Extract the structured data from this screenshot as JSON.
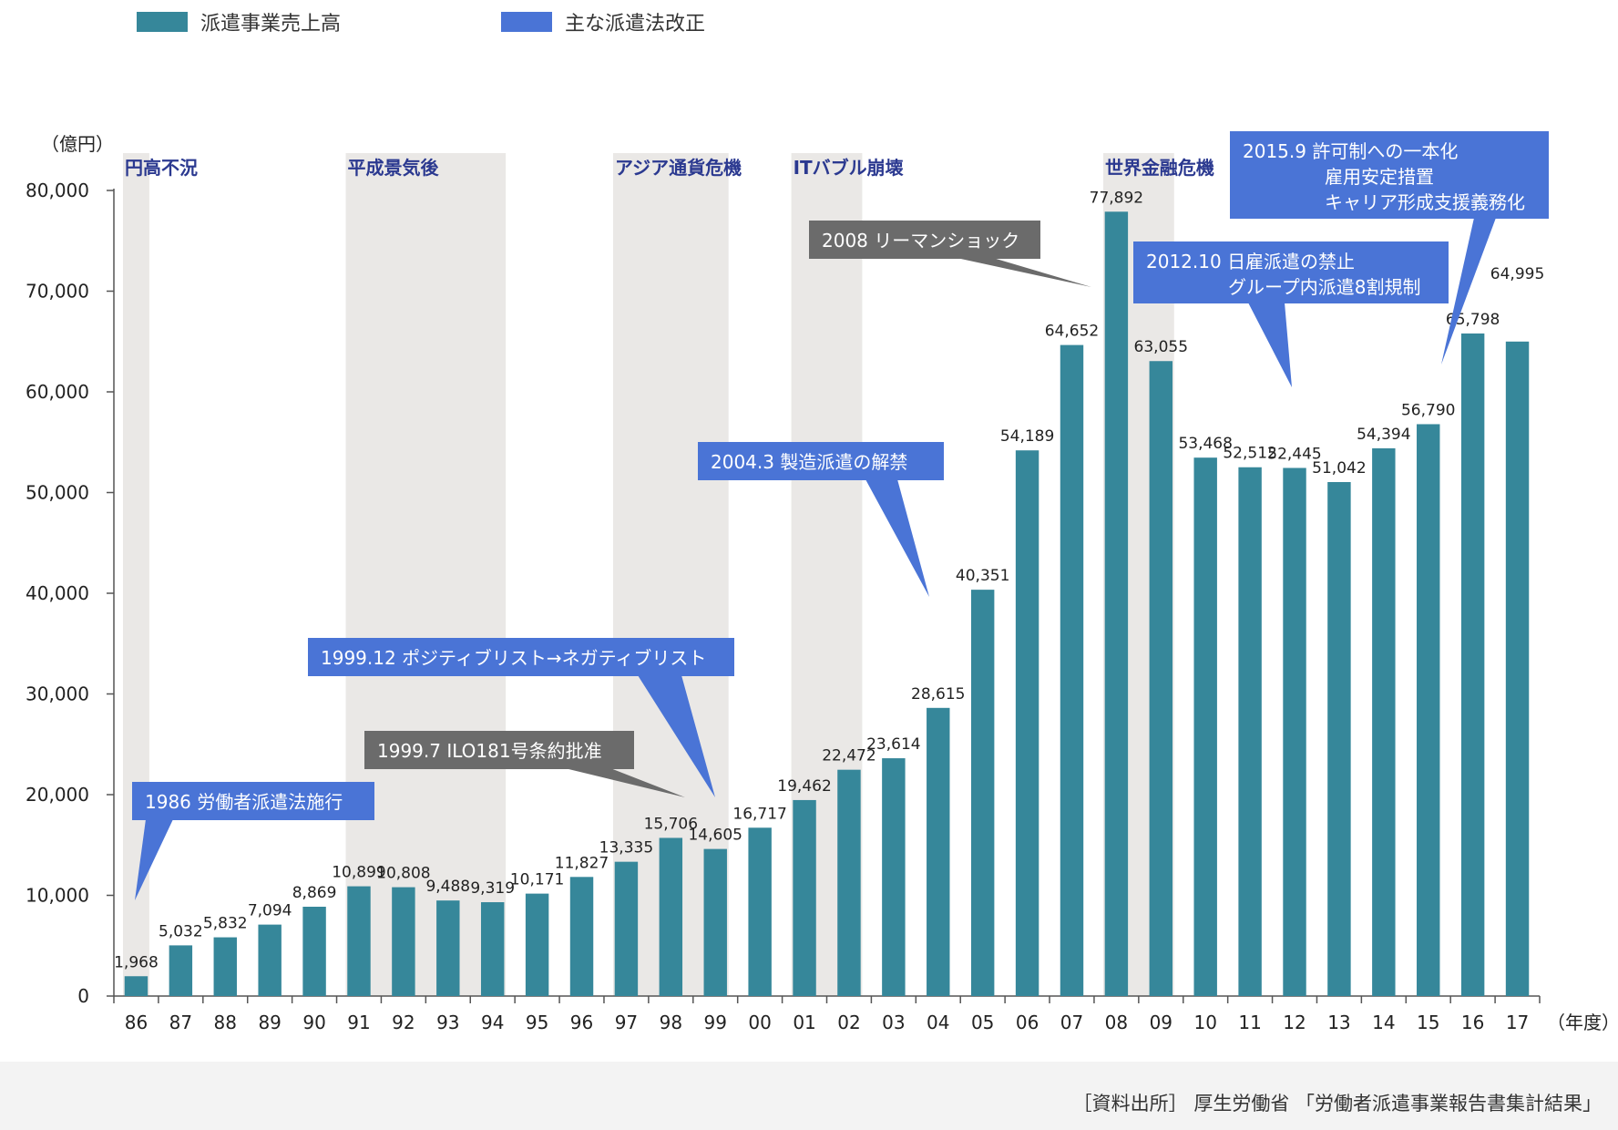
{
  "legend": {
    "sales_label": "派遣事業売上高",
    "revision_label": "主な派遣法改正"
  },
  "source_note": "［資料出所］ 厚生労働省 「労働者派遣事業報告書集計結果」",
  "colors": {
    "bar": "#36879A",
    "callout_blue": "#4A74D6",
    "callout_gray": "#6B6B6B",
    "recession_band": "#EAE8E6",
    "band_label": "#2B3990",
    "axis": "#555555"
  },
  "chart_data": {
    "type": "bar",
    "y_unit": "（億円）",
    "x_unit": "（年度）",
    "ylim": [
      0,
      80000
    ],
    "y_ticks": [
      0,
      10000,
      20000,
      30000,
      40000,
      50000,
      60000,
      70000,
      80000
    ],
    "y_tick_labels": [
      "0",
      "10,000",
      "20,000",
      "30,000",
      "40,000",
      "50,000",
      "60,000",
      "70,000",
      "80,000"
    ],
    "categories": [
      "86",
      "87",
      "88",
      "89",
      "90",
      "91",
      "92",
      "93",
      "94",
      "95",
      "96",
      "97",
      "98",
      "99",
      "00",
      "01",
      "02",
      "03",
      "04",
      "05",
      "06",
      "07",
      "08",
      "09",
      "10",
      "11",
      "12",
      "13",
      "14",
      "15",
      "16",
      "17"
    ],
    "series": [
      {
        "name": "派遣事業売上高",
        "values": [
          1968,
          5032,
          5832,
          7094,
          8869,
          10899,
          10808,
          9488,
          9319,
          10171,
          11827,
          13335,
          15706,
          14605,
          16717,
          19462,
          22472,
          23614,
          28615,
          40351,
          54189,
          64652,
          77892,
          63055,
          53468,
          52512,
          52445,
          51042,
          54394,
          56790,
          65798,
          64995
        ],
        "labels": [
          "1,968",
          "5,032",
          "5,832",
          "7,094",
          "8,869",
          "10,899",
          "10,808",
          "9,488",
          "9,319",
          "10,171",
          "11,827",
          "13,335",
          "15,706",
          "14,605",
          "16,717",
          "19,462",
          "22,472",
          "23,614",
          "28,615",
          "40,351",
          "54,189",
          "64,652",
          "77,892",
          "63,055",
          "53,468",
          "52,512",
          "52,445",
          "51,042",
          "54,394",
          "56,790",
          "65,798",
          "64,995"
        ]
      }
    ],
    "recession_periods": [
      {
        "label": "円高不況",
        "start": "86",
        "end": "86"
      },
      {
        "label": "平成景気後",
        "start": "91",
        "end": "94"
      },
      {
        "label": "アジア通貨危機",
        "start": "97",
        "end": "99"
      },
      {
        "label": "ITバブル崩壊",
        "start": "01",
        "end": "02"
      },
      {
        "label": "世界金融危機",
        "start": "08",
        "end": "09"
      }
    ],
    "annotations": [
      {
        "style": "blue",
        "lines": [
          "1986 労働者派遣法施行"
        ],
        "target": "86"
      },
      {
        "style": "gray",
        "lines": [
          "1999.7 ILO181号条約批准"
        ],
        "target": "99"
      },
      {
        "style": "blue",
        "lines": [
          "1999.12 ポジティブリスト→ネガティブリスト"
        ],
        "target": "99"
      },
      {
        "style": "blue",
        "lines": [
          "2004.3 製造派遣の解禁"
        ],
        "target": "04"
      },
      {
        "style": "gray",
        "lines": [
          "2008 リーマンショック"
        ],
        "target": "08"
      },
      {
        "style": "blue",
        "lines": [
          "2012.10 日雇派遣の禁止",
          "グループ内派遣8割規制"
        ],
        "target": "12"
      },
      {
        "style": "blue",
        "lines": [
          "2015.9 許可制への一本化",
          "雇用安定措置",
          "キャリア形成支援義務化"
        ],
        "target": "15"
      }
    ]
  }
}
